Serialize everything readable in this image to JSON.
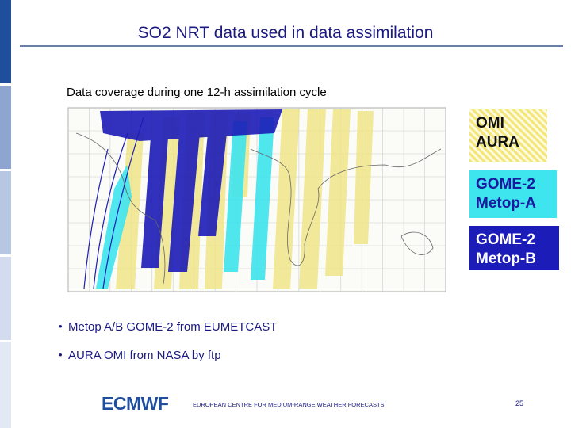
{
  "header": {
    "title": "SO2 NRT data used in data assimilation"
  },
  "subtitle": "Data coverage during one 12-h assimilation cycle",
  "legend": [
    [
      "OMI",
      "AURA"
    ],
    [
      "GOME-2",
      "Metop-A"
    ],
    [
      "GOME-2",
      "Metop-B"
    ]
  ],
  "bullets": [
    "Metop A/B GOME-2 from EUMETCAST",
    "AURA OMI from NASA by ftp"
  ],
  "footer": {
    "logo": "ECMWF",
    "organization": "EUROPEAN CENTRE FOR MEDIUM-RANGE WEATHER FORECASTS",
    "page": "25"
  }
}
